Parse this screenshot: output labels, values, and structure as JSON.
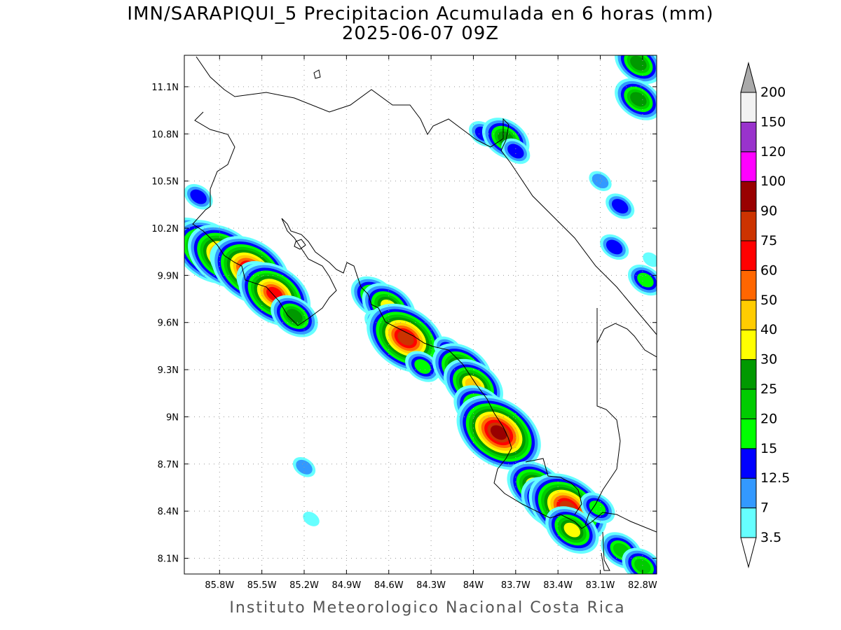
{
  "title": {
    "line1": "IMN/SARAPIQUI_5 Precipitacion Acumulada en 6 horas (mm)",
    "line2": "2025-06-07 09Z"
  },
  "footer": "Instituto Meteorologico Nacional Costa Rica",
  "map": {
    "lon_range": [
      -86.05,
      -82.7
    ],
    "lat_range": [
      8.0,
      11.3
    ],
    "lon_ticks": [
      {
        "value": -85.8,
        "label": "85.8W"
      },
      {
        "value": -85.5,
        "label": "85.5W"
      },
      {
        "value": -85.2,
        "label": "85.2W"
      },
      {
        "value": -84.9,
        "label": "84.9W"
      },
      {
        "value": -84.6,
        "label": "84.6W"
      },
      {
        "value": -84.3,
        "label": "84.3W"
      },
      {
        "value": -84.0,
        "label": "84W"
      },
      {
        "value": -83.7,
        "label": "83.7W"
      },
      {
        "value": -83.4,
        "label": "83.4W"
      },
      {
        "value": -83.1,
        "label": "83.1W"
      },
      {
        "value": -82.8,
        "label": "82.8W"
      }
    ],
    "lat_ticks": [
      {
        "value": 11.1,
        "label": "11.1N"
      },
      {
        "value": 10.8,
        "label": "10.8N"
      },
      {
        "value": 10.5,
        "label": "10.5N"
      },
      {
        "value": 10.2,
        "label": "10.2N"
      },
      {
        "value": 9.9,
        "label": "9.9N"
      },
      {
        "value": 9.6,
        "label": "9.6N"
      },
      {
        "value": 9.3,
        "label": "9.3N"
      },
      {
        "value": 9.0,
        "label": "9N"
      },
      {
        "value": 8.7,
        "label": "8.7N"
      },
      {
        "value": 8.4,
        "label": "8.4N"
      },
      {
        "value": 8.1,
        "label": "8.1N"
      }
    ],
    "grid": true,
    "precip_cells": [
      {
        "lon": -85.97,
        "lat": 10.1,
        "mm": 45
      },
      {
        "lon": -85.87,
        "lat": 10.05,
        "mm": 60
      },
      {
        "lon": -85.77,
        "lat": 10.02,
        "mm": 60
      },
      {
        "lon": -85.68,
        "lat": 9.97,
        "mm": 35
      },
      {
        "lon": -85.58,
        "lat": 9.93,
        "mm": 75
      },
      {
        "lon": -85.49,
        "lat": 9.84,
        "mm": 30
      },
      {
        "lon": -85.41,
        "lat": 9.78,
        "mm": 60
      },
      {
        "lon": -85.3,
        "lat": 9.68,
        "mm": 7
      },
      {
        "lon": -85.27,
        "lat": 9.64,
        "mm": 25
      },
      {
        "lon": -84.7,
        "lat": 9.76,
        "mm": 25
      },
      {
        "lon": -84.6,
        "lat": 9.7,
        "mm": 30
      },
      {
        "lon": -84.67,
        "lat": 9.6,
        "mm": 12.5
      },
      {
        "lon": -84.48,
        "lat": 9.5,
        "mm": 75
      },
      {
        "lon": -84.36,
        "lat": 9.32,
        "mm": 15
      },
      {
        "lon": -84.18,
        "lat": 9.43,
        "mm": 12.5
      },
      {
        "lon": -84.08,
        "lat": 9.3,
        "mm": 40
      },
      {
        "lon": -84.0,
        "lat": 9.2,
        "mm": 40
      },
      {
        "lon": -83.95,
        "lat": 9.05,
        "mm": 30
      },
      {
        "lon": -83.82,
        "lat": 8.9,
        "mm": 90
      },
      {
        "lon": -83.55,
        "lat": 8.55,
        "mm": 40
      },
      {
        "lon": -83.45,
        "lat": 8.45,
        "mm": 40
      },
      {
        "lon": -83.33,
        "lat": 8.42,
        "mm": 75
      },
      {
        "lon": -83.12,
        "lat": 8.42,
        "mm": 15
      },
      {
        "lon": -83.3,
        "lat": 8.28,
        "mm": 30
      },
      {
        "lon": -82.95,
        "lat": 8.15,
        "mm": 20
      },
      {
        "lon": -82.8,
        "lat": 8.05,
        "mm": 20
      },
      {
        "lon": -83.93,
        "lat": 10.8,
        "mm": 12.5
      },
      {
        "lon": -83.77,
        "lat": 10.77,
        "mm": 25
      },
      {
        "lon": -83.7,
        "lat": 10.69,
        "mm": 12.5
      },
      {
        "lon": -82.83,
        "lat": 11.25,
        "mm": 25
      },
      {
        "lon": -82.83,
        "lat": 11.02,
        "mm": 25
      },
      {
        "lon": -82.96,
        "lat": 10.34,
        "mm": 12.5
      },
      {
        "lon": -82.78,
        "lat": 9.87,
        "mm": 15
      },
      {
        "lon": -83.0,
        "lat": 10.08,
        "mm": 12.5
      },
      {
        "lon": -85.95,
        "lat": 10.4,
        "mm": 12.5
      },
      {
        "lon": -85.2,
        "lat": 8.68,
        "mm": 7
      },
      {
        "lon": -85.15,
        "lat": 8.35,
        "mm": 3.5
      },
      {
        "lon": -83.1,
        "lat": 10.5,
        "mm": 7
      },
      {
        "lon": -82.74,
        "lat": 10.0,
        "mm": 3.5
      }
    ]
  },
  "colorbar": {
    "levels": [
      "3.5",
      "7",
      "12.5",
      "15",
      "20",
      "25",
      "30",
      "40",
      "50",
      "60",
      "75",
      "90",
      "100",
      "120",
      "150",
      "200"
    ],
    "colors": [
      "#ffffff",
      "#66ffff",
      "#3399ff",
      "#0000ff",
      "#00ff00",
      "#00cc00",
      "#009900",
      "#ffff00",
      "#ffcc00",
      "#ff6600",
      "#ff0000",
      "#cc3300",
      "#990000",
      "#ff00ff",
      "#9933cc",
      "#f2f2f2",
      "#aaaaaa"
    ]
  }
}
